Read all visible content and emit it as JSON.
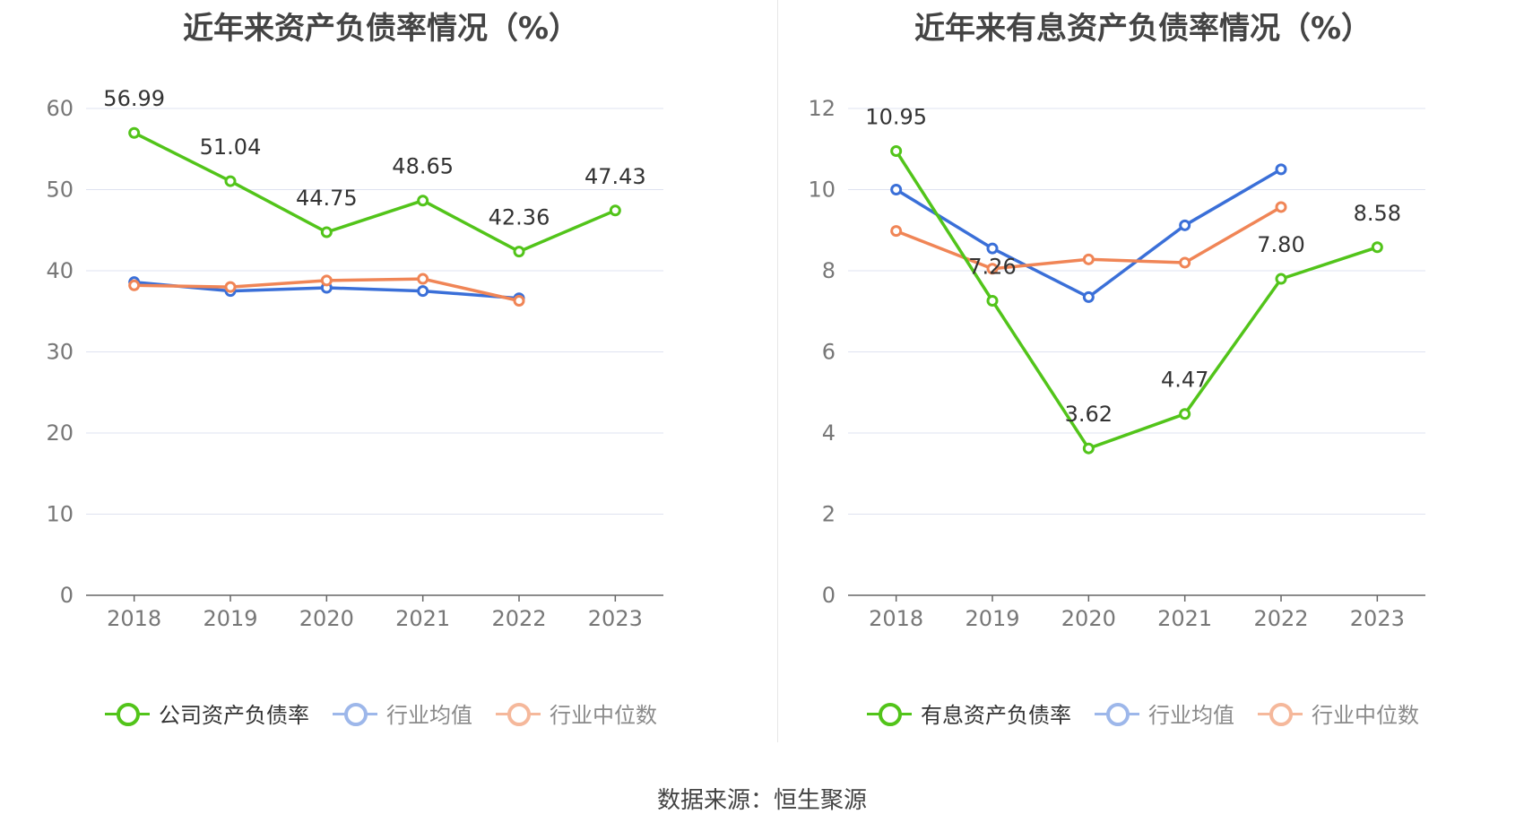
{
  "source": "数据来源：恒生聚源",
  "chart_data": [
    {
      "type": "line",
      "title": "近年来资产负债率情况（%）",
      "categories": [
        "2018",
        "2019",
        "2020",
        "2021",
        "2022",
        "2023"
      ],
      "ylim": [
        0,
        60
      ],
      "yticks": [
        0,
        10,
        20,
        30,
        40,
        50,
        60
      ],
      "grid": true,
      "legend_position": "bottom",
      "series": [
        {
          "name": "公司资产负债率",
          "color": "#52c41a",
          "labeled": true,
          "values": [
            56.99,
            51.04,
            44.75,
            48.65,
            42.36,
            47.43
          ]
        },
        {
          "name": "行业均值",
          "color": "#3a6fd8",
          "labeled": false,
          "values": [
            38.6,
            37.5,
            37.9,
            37.5,
            36.6,
            null
          ]
        },
        {
          "name": "行业中位数",
          "color": "#f08556",
          "labeled": false,
          "values": [
            38.2,
            38.0,
            38.8,
            39.0,
            36.3,
            null
          ]
        }
      ]
    },
    {
      "type": "line",
      "title": "近年来有息资产负债率情况（%）",
      "categories": [
        "2018",
        "2019",
        "2020",
        "2021",
        "2022",
        "2023"
      ],
      "ylim": [
        0,
        12
      ],
      "yticks": [
        0,
        2,
        4,
        6,
        8,
        10,
        12
      ],
      "grid": true,
      "legend_position": "bottom",
      "series": [
        {
          "name": "有息资产负债率",
          "color": "#52c41a",
          "labeled": true,
          "values": [
            10.95,
            7.26,
            3.62,
            4.47,
            7.8,
            8.58
          ]
        },
        {
          "name": "行业均值",
          "color": "#3a6fd8",
          "labeled": false,
          "values": [
            10.0,
            8.55,
            7.35,
            9.12,
            10.5,
            null
          ]
        },
        {
          "name": "行业中位数",
          "color": "#f08556",
          "labeled": false,
          "values": [
            8.98,
            8.05,
            8.28,
            8.2,
            9.57,
            null
          ]
        }
      ]
    }
  ]
}
